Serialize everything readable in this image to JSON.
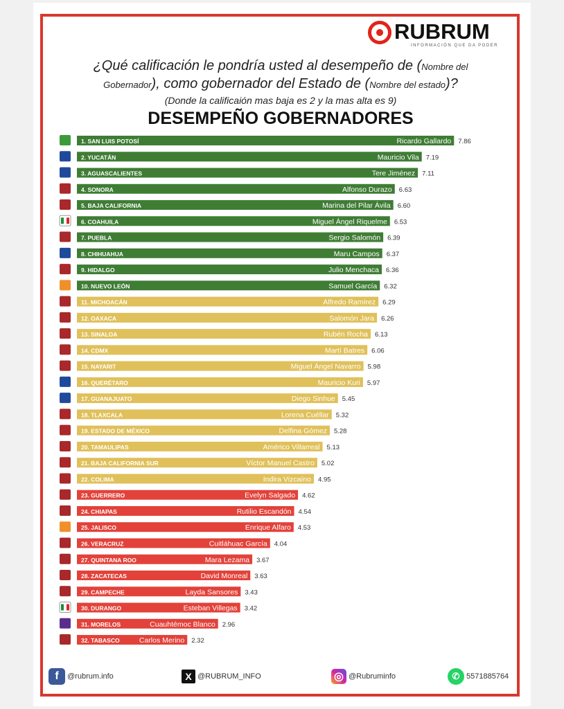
{
  "brand": {
    "name": "RUBRUM",
    "tagline": "INFORMACIÓN QUE DA PODER"
  },
  "question": {
    "line1_main": "¿Qué calificación le pondría usted al desempeño de (",
    "line1_small": "Nombre del",
    "line2_small_a": "Gobernador",
    "line2_main": "), como gobernador del Estado de (",
    "line2_small_b": "Nombre del estado",
    "line2_end": ")?",
    "note": "(Donde la calificaión mas baja es 2 y la mas alta es 9)"
  },
  "chart_data": {
    "type": "bar",
    "orientation": "horizontal",
    "title": "DESEMPEÑO GOBERNADORES",
    "xlim": [
      0,
      9
    ],
    "grid": false,
    "colors": {
      "high": "#3f7d35",
      "mid": "#e0c05a",
      "low": "#e2423a"
    },
    "party_colors": {
      "morena": "#a8282b",
      "pan": "#1f4a9c",
      "pri": "#ffffff",
      "pvem": "#3b9a3a",
      "mc": "#f0902a",
      "pes": "#5a2d8c"
    },
    "rows": [
      {
        "label": "1. SAN LUIS POTOSÍ",
        "governor": "Ricardo Gallardo",
        "value": 7.86,
        "value_label": "7.86",
        "party": "pvem",
        "tier": "high"
      },
      {
        "label": "2. YUCATÁN",
        "governor": "Mauricio Vila",
        "value": 7.19,
        "value_label": "7.19",
        "party": "pan",
        "tier": "high"
      },
      {
        "label": "3. AGUASCALIENTES",
        "governor": "Tere Jiménez",
        "value": 7.11,
        "value_label": "7.11",
        "party": "pan",
        "tier": "high"
      },
      {
        "label": "4. SONORA",
        "governor": "Alfonso Durazo",
        "value": 6.63,
        "value_label": "6.63",
        "party": "morena",
        "tier": "high"
      },
      {
        "label": "5. BAJA CALIFORNIA",
        "governor": "Marina del Pilar Ávila",
        "value": 6.6,
        "value_label": "6.60",
        "party": "morena",
        "tier": "high"
      },
      {
        "label": "6. COAHUILA",
        "governor": "Miguel Ángel Riquelme",
        "value": 6.53,
        "value_label": "6.53",
        "party": "pri",
        "tier": "high"
      },
      {
        "label": "7. PUEBLA",
        "governor": "Sergio Salomón",
        "value": 6.39,
        "value_label": "6.39",
        "party": "morena",
        "tier": "high"
      },
      {
        "label": "8. CHIHUAHUA",
        "governor": "Maru Campos",
        "value": 6.37,
        "value_label": "6.37",
        "party": "pan",
        "tier": "high"
      },
      {
        "label": "9. HIDALGO",
        "governor": "Julio Menchaca",
        "value": 6.36,
        "value_label": "6.36",
        "party": "morena",
        "tier": "high"
      },
      {
        "label": "10. NUEVO LEÓN",
        "governor": "Samuel García",
        "value": 6.32,
        "value_label": "6.32",
        "party": "mc",
        "tier": "high"
      },
      {
        "label": "11. MICHOACÁN",
        "governor": "Alfredo Ramírez",
        "value": 6.29,
        "value_label": "6.29",
        "party": "morena",
        "tier": "mid"
      },
      {
        "label": "12. OAXACA",
        "governor": "Salomón Jara",
        "value": 6.26,
        "value_label": "6.26",
        "party": "morena",
        "tier": "mid"
      },
      {
        "label": "13. SINALOA",
        "governor": "Rubén Rocha",
        "value": 6.13,
        "value_label": "6.13",
        "party": "morena",
        "tier": "mid"
      },
      {
        "label": "14. CDMX",
        "governor": "Martí Batres",
        "value": 6.06,
        "value_label": "6.06",
        "party": "morena",
        "tier": "mid"
      },
      {
        "label": "15. NAYARIT",
        "governor": "Miguel Ángel Navarro",
        "value": 5.98,
        "value_label": "5.98",
        "party": "morena",
        "tier": "mid"
      },
      {
        "label": "16. QUERÉTARO",
        "governor": "Mauricio Kuri",
        "value": 5.97,
        "value_label": "5.97",
        "party": "pan",
        "tier": "mid"
      },
      {
        "label": "17. GUANAJUATO",
        "governor": "Diego Sinhue",
        "value": 5.45,
        "value_label": "5.45",
        "party": "pan",
        "tier": "mid"
      },
      {
        "label": "18. TLAXCALA",
        "governor": "Lorena Cuéllar",
        "value": 5.32,
        "value_label": "5.32",
        "party": "morena",
        "tier": "mid"
      },
      {
        "label": "19. ESTADO DE MÉXICO",
        "governor": "Delfina Gómez",
        "value": 5.28,
        "value_label": "5.28",
        "party": "morena",
        "tier": "mid"
      },
      {
        "label": "20. TAMAULIPAS",
        "governor": "Américo Villarreal",
        "value": 5.13,
        "value_label": "5.13",
        "party": "morena",
        "tier": "mid"
      },
      {
        "label": "21. BAJA CALIFORNIA SUR",
        "governor": "Víctor Manuel Castro",
        "value": 5.02,
        "value_label": "5.02",
        "party": "morena",
        "tier": "mid"
      },
      {
        "label": "22. COLIMA",
        "governor": "Indira Vizcaíno",
        "value": 4.95,
        "value_label": "4.95",
        "party": "morena",
        "tier": "mid"
      },
      {
        "label": "23. GUERRERO",
        "governor": "Evelyn Salgado",
        "value": 4.62,
        "value_label": "4.62",
        "party": "morena",
        "tier": "low"
      },
      {
        "label": "24. CHIAPAS",
        "governor": "Rutilio Escandón",
        "value": 4.54,
        "value_label": "4.54",
        "party": "morena",
        "tier": "low"
      },
      {
        "label": "25. JALISCO",
        "governor": "Enrique Alfaro",
        "value": 4.53,
        "value_label": "4.53",
        "party": "mc",
        "tier": "low"
      },
      {
        "label": "26. VERACRUZ",
        "governor": "Cuitláhuac García",
        "value": 4.04,
        "value_label": "4.04",
        "party": "morena",
        "tier": "low"
      },
      {
        "label": "27. QUINTANA ROO",
        "governor": "Mara Lezama",
        "value": 3.67,
        "value_label": "3.67",
        "party": "morena",
        "tier": "low"
      },
      {
        "label": "28. ZACATECAS",
        "governor": "David Monreal",
        "value": 3.63,
        "value_label": "3.63",
        "party": "morena",
        "tier": "low"
      },
      {
        "label": "29. CAMPECHE",
        "governor": "Layda Sansores",
        "value": 3.43,
        "value_label": "3.43",
        "party": "morena",
        "tier": "low"
      },
      {
        "label": "30. DURANGO",
        "governor": "Esteban Villegas",
        "value": 3.42,
        "value_label": "3.42",
        "party": "pri",
        "tier": "low"
      },
      {
        "label": "31. MORELOS",
        "governor": "Cuauhtémoc Blanco",
        "value": 2.96,
        "value_label": "2.96",
        "party": "pes",
        "tier": "low"
      },
      {
        "label": "32. TABASCO",
        "governor": "Carlos Merino",
        "value": 2.32,
        "value_label": "2.32",
        "party": "morena",
        "tier": "low"
      }
    ]
  },
  "footer": {
    "facebook": {
      "icon": "facebook-icon",
      "handle": "@rubrum.info"
    },
    "x": {
      "icon": "x-icon",
      "handle": "@RUBRUM_INFO"
    },
    "instagram": {
      "icon": "instagram-icon",
      "handle": "@Rubruminfo"
    },
    "whatsapp": {
      "icon": "whatsapp-icon",
      "handle": "5571885764"
    }
  }
}
